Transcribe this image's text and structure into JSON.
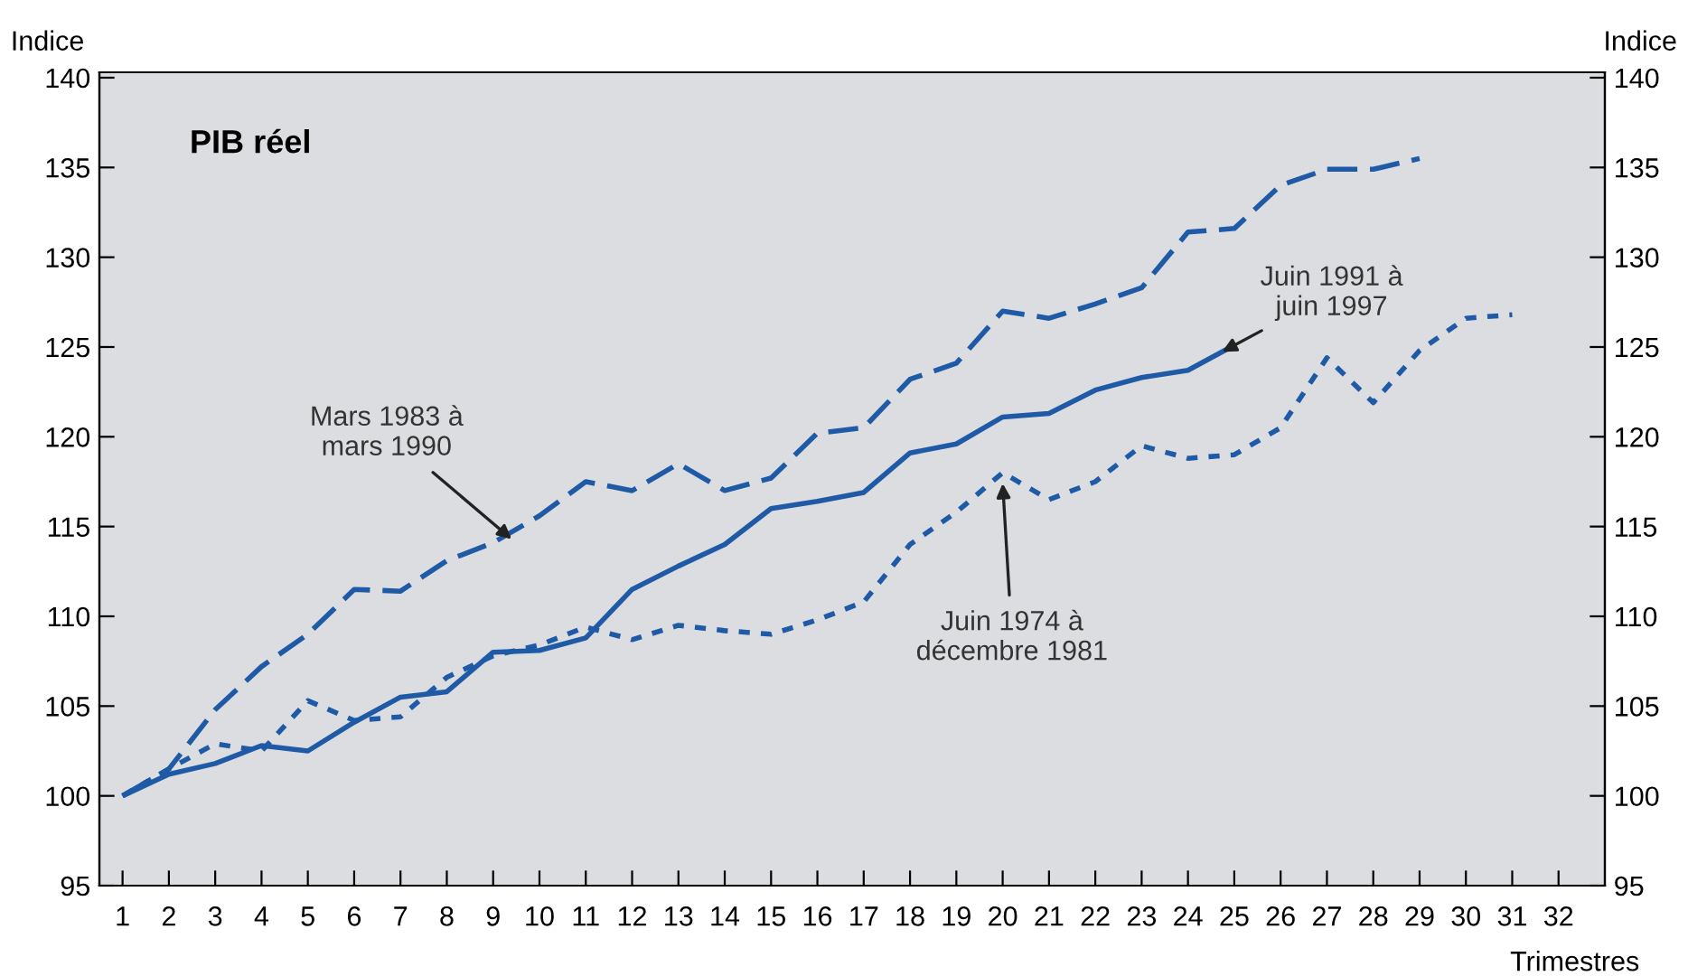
{
  "chart_data": {
    "type": "line",
    "title": "PIB réel",
    "ylabel": "Indice",
    "y2label": "Indice",
    "xlabel": "Trimestres",
    "x": [
      1,
      2,
      3,
      4,
      5,
      6,
      7,
      8,
      9,
      10,
      11,
      12,
      13,
      14,
      15,
      16,
      17,
      18,
      19,
      20,
      21,
      22,
      23,
      24,
      25,
      26,
      27,
      28,
      29,
      30,
      31
    ],
    "series": [
      {
        "color": "#1f5aa6",
        "line_style": "dashed",
        "values": [
          100,
          101.5,
          104.8,
          107.2,
          109,
          111.5,
          111.4,
          113.1,
          114.1,
          115.6,
          117.5,
          117,
          118.5,
          117,
          117.7,
          120.2,
          120.5,
          123.2,
          124.1,
          127,
          126.6,
          127.4,
          128.3,
          131.4,
          131.6,
          134,
          134.9,
          134.9,
          135.5,
          null,
          null
        ]
      },
      {
        "color": "#1f5aa6",
        "line_style": "solid",
        "values": [
          100,
          101.2,
          101.8,
          102.8,
          102.5,
          104.1,
          105.5,
          105.8,
          108,
          108.1,
          108.8,
          111.5,
          112.8,
          114,
          116,
          116.4,
          116.9,
          119.1,
          119.6,
          121.1,
          121.3,
          122.6,
          123.3,
          123.7,
          125.1,
          null,
          null,
          null,
          null,
          null,
          null
        ]
      },
      {
        "color": "#1f5aa6",
        "line_style": "dotted",
        "values": [
          100,
          101.5,
          102.9,
          102.5,
          105.3,
          104.2,
          104.4,
          106.6,
          107.8,
          108.4,
          109.4,
          108.7,
          109.5,
          109.2,
          109,
          109.8,
          110.8,
          114,
          115.8,
          118,
          116.5,
          117.5,
          119.5,
          118.8,
          119,
          120.5,
          124.4,
          121.9,
          124.8,
          126.6,
          126.8
        ]
      }
    ],
    "annotations": [
      {
        "text": "Mars 1983 à\nmars 1990",
        "x": 9.4,
        "y": 114.3
      },
      {
        "text": "Juin 1991 à\njuin 1997",
        "x": 24.5,
        "y": 124.4
      },
      {
        "text": "Juin 1974 à\ndécembre 1981",
        "x": 20,
        "y": 117.4
      }
    ],
    "xlim": [
      0.5,
      33
    ],
    "xticks": [
      1,
      2,
      3,
      4,
      5,
      6,
      7,
      8,
      9,
      10,
      11,
      12,
      13,
      14,
      15,
      16,
      17,
      18,
      19,
      20,
      21,
      22,
      23,
      24,
      25,
      26,
      27,
      28,
      29,
      30,
      31,
      32
    ],
    "ylim": [
      95,
      140.3
    ],
    "yticks": [
      95,
      100,
      105,
      110,
      115,
      120,
      125,
      130,
      135,
      140
    ],
    "y2lim": [
      95,
      140.3
    ],
    "y2ticks": [
      95,
      100,
      105,
      110,
      115,
      120,
      125,
      130,
      135,
      140
    ],
    "grid": false,
    "legend": false
  }
}
